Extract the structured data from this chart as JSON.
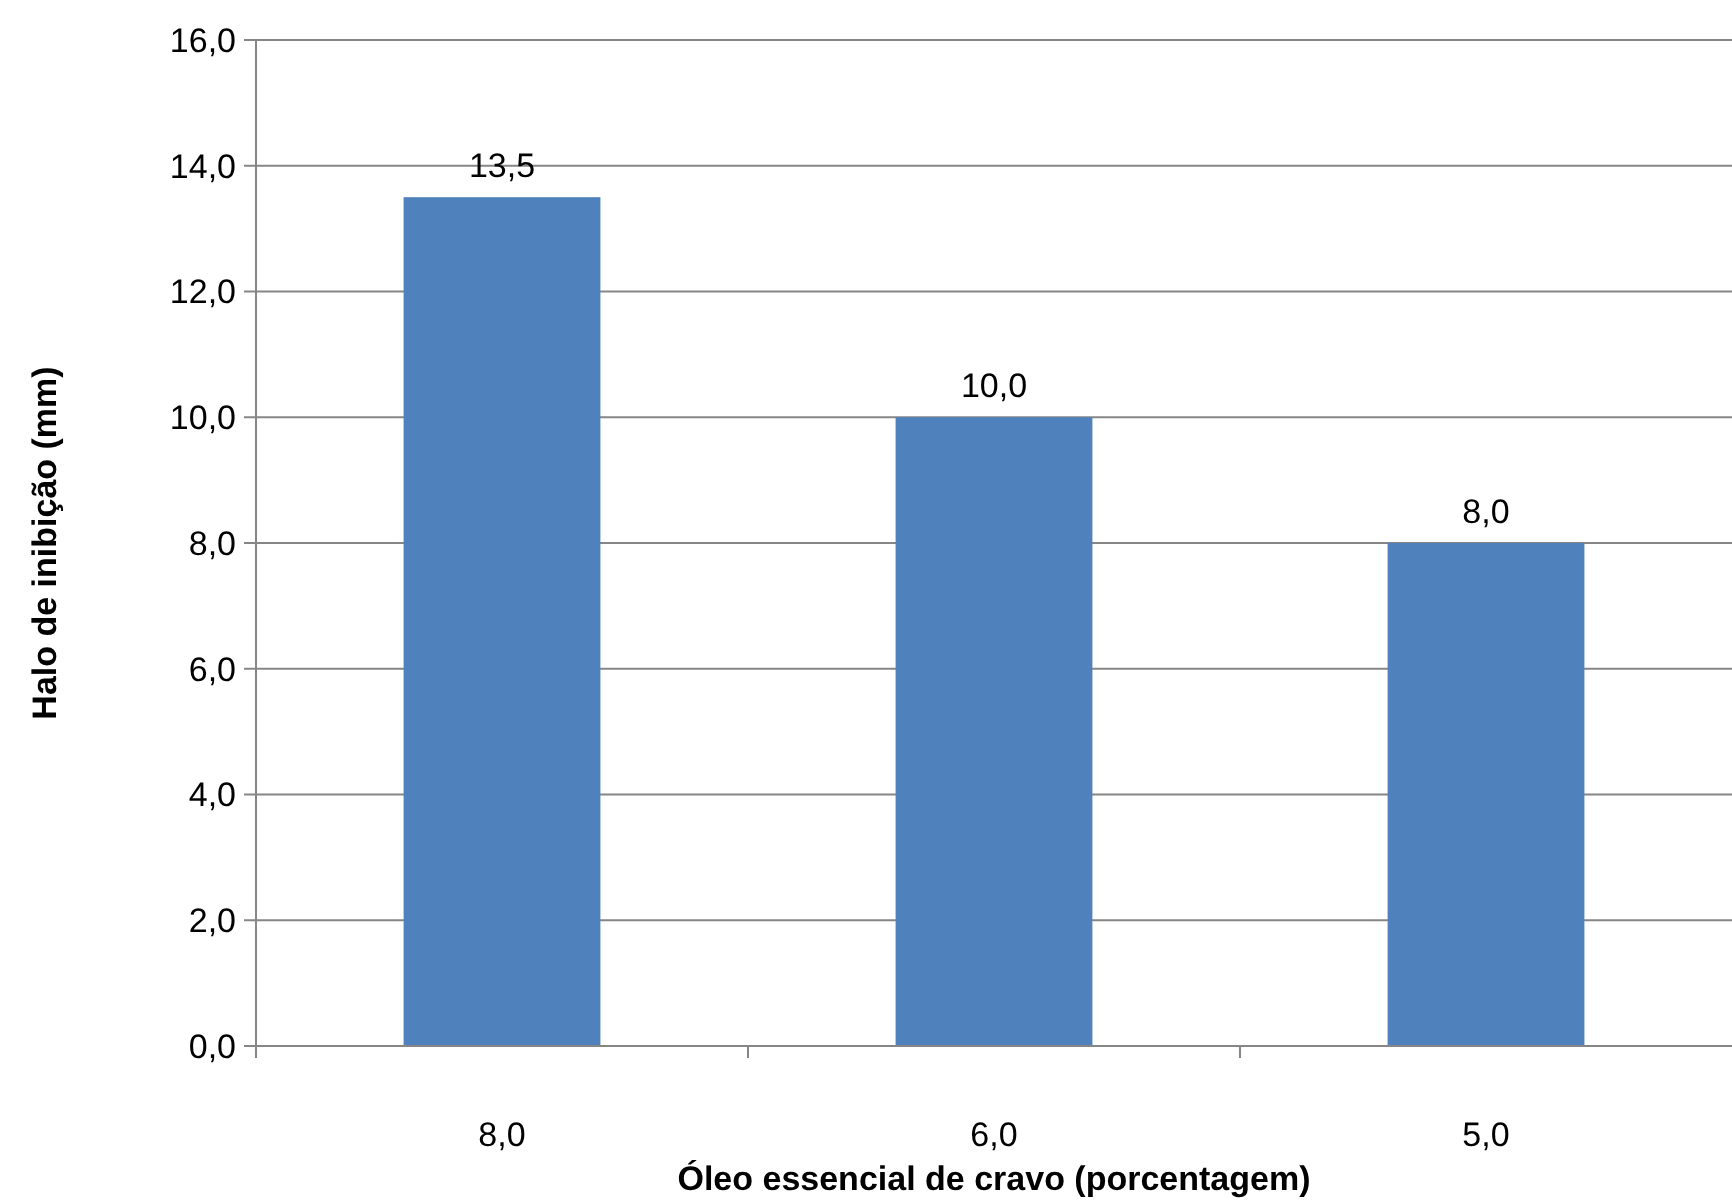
{
  "chart_data": {
    "type": "bar",
    "xlabel": "Óleo essencial de cravo (porcentagem)",
    "ylabel": "Halo de inibição (mm)",
    "categories": [
      "8,0",
      "6,0",
      "5,0"
    ],
    "values": [
      13.5,
      10.0,
      8.0
    ],
    "value_labels": [
      "13,5",
      "10,0",
      "8,0"
    ],
    "color": "#4f81bd",
    "ylim": [
      0,
      16
    ],
    "yticks": [
      {
        "value": 0,
        "label": "0,0"
      },
      {
        "value": 2,
        "label": "2,0"
      },
      {
        "value": 4,
        "label": "4,0"
      },
      {
        "value": 6,
        "label": "6,0"
      },
      {
        "value": 8,
        "label": "8,0"
      },
      {
        "value": 10,
        "label": "10,0"
      },
      {
        "value": 12,
        "label": "12,0"
      },
      {
        "value": 14,
        "label": "14,0"
      },
      {
        "value": 16,
        "label": "16,0"
      }
    ],
    "grid": "y"
  }
}
